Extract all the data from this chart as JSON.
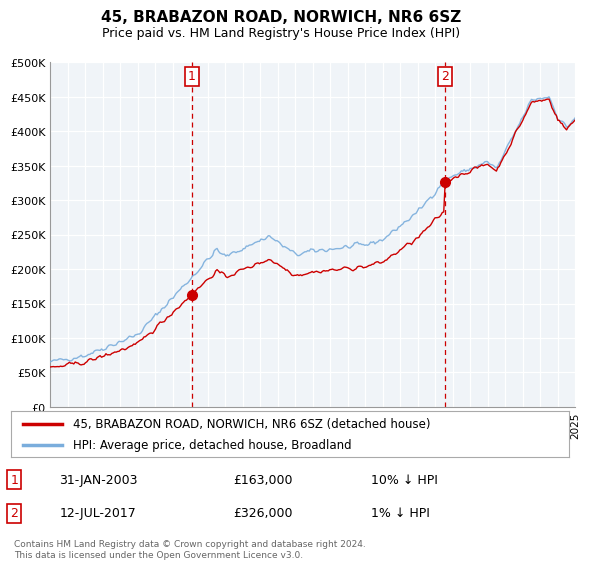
{
  "title": "45, BRABAZON ROAD, NORWICH, NR6 6SZ",
  "subtitle": "Price paid vs. HM Land Registry's House Price Index (HPI)",
  "ylim": [
    0,
    500000
  ],
  "yticks": [
    0,
    50000,
    100000,
    150000,
    200000,
    250000,
    300000,
    350000,
    400000,
    450000,
    500000
  ],
  "ytick_labels": [
    "£0",
    "£50K",
    "£100K",
    "£150K",
    "£200K",
    "£250K",
    "£300K",
    "£350K",
    "£400K",
    "£450K",
    "£500K"
  ],
  "x_start_year": 1995,
  "x_end_year": 2025,
  "sale1_date": "31-JAN-2003",
  "sale1_price": 163000,
  "sale2_date": "12-JUL-2017",
  "sale2_price": 326000,
  "sale1_note": "10% ↓ HPI",
  "sale2_note": "1% ↓ HPI",
  "line1_color": "#cc0000",
  "line2_color": "#7aaddc",
  "vline_color": "#cc0000",
  "legend_line1": "45, BRABAZON ROAD, NORWICH, NR6 6SZ (detached house)",
  "legend_line2": "HPI: Average price, detached house, Broadland",
  "footer": "Contains HM Land Registry data © Crown copyright and database right 2024.\nThis data is licensed under the Open Government Licence v3.0.",
  "background_color": "#ffffff",
  "grid_color": "#d0d0d0",
  "sale1_x": 2003.08,
  "sale2_x": 2017.54
}
